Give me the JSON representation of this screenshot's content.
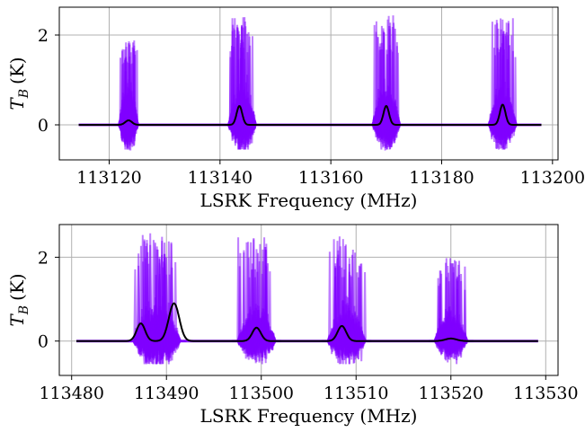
{
  "chart_data": [
    {
      "type": "line",
      "xlabel": "LSRK Frequency (MHz)",
      "ylabel": "T",
      "ylabel_sub": "B",
      "ylabel_unit": "(K)",
      "xlim": [
        113111,
        113201
      ],
      "ylim": [
        -0.78,
        2.62
      ],
      "xticks": [
        113120,
        113140,
        113160,
        113180,
        113200
      ],
      "yticks": [
        0,
        2
      ],
      "grid": true,
      "x_range": [
        113114.5,
        113198
      ],
      "noise_color": "#8000ff",
      "model_color": "#000000",
      "noise_regions": [
        {
          "center": 113123.5,
          "width": 3.5,
          "amp": 1.0,
          "max": 1.9
        },
        {
          "center": 113144.0,
          "width": 5.0,
          "amp": 1.05,
          "max": 2.4
        },
        {
          "center": 113170.0,
          "width": 5.0,
          "amp": 1.0,
          "max": 2.45
        },
        {
          "center": 113191.0,
          "width": 5.0,
          "amp": 1.0,
          "max": 2.4
        }
      ],
      "model_peaks": [
        {
          "center": 113123.5,
          "height": 0.1,
          "sigma": 0.6
        },
        {
          "center": 113143.5,
          "height": 0.42,
          "sigma": 0.5
        },
        {
          "center": 113170.0,
          "height": 0.42,
          "sigma": 0.5
        },
        {
          "center": 113191.0,
          "height": 0.45,
          "sigma": 0.5
        }
      ]
    },
    {
      "type": "line",
      "xlabel": "LSRK Frequency (MHz)",
      "ylabel": "T",
      "ylabel_sub": "B",
      "ylabel_unit": "(K)",
      "xlim": [
        113478.7,
        113531.3
      ],
      "ylim": [
        -0.82,
        2.78
      ],
      "xticks": [
        113480,
        113490,
        113500,
        113510,
        113520,
        113530
      ],
      "yticks": [
        0,
        2
      ],
      "grid": true,
      "x_range": [
        113480.5,
        113529.2
      ],
      "noise_color": "#8000ff",
      "model_color": "#000000",
      "noise_regions": [
        {
          "center": 113489.0,
          "width": 5.0,
          "amp": 1.2,
          "max": 2.6
        },
        {
          "center": 113499.5,
          "width": 4.0,
          "amp": 1.0,
          "max": 2.5
        },
        {
          "center": 113509.0,
          "width": 4.0,
          "amp": 1.0,
          "max": 2.5
        },
        {
          "center": 113520.0,
          "width": 3.5,
          "amp": 0.8,
          "max": 2.0
        }
      ],
      "model_peaks": [
        {
          "center": 113487.3,
          "height": 0.42,
          "sigma": 0.45
        },
        {
          "center": 113490.8,
          "height": 0.9,
          "sigma": 0.55
        },
        {
          "center": 113499.5,
          "height": 0.32,
          "sigma": 0.45
        },
        {
          "center": 113508.5,
          "height": 0.36,
          "sigma": 0.45
        },
        {
          "center": 113520.0,
          "height": 0.06,
          "sigma": 0.6
        }
      ]
    }
  ]
}
